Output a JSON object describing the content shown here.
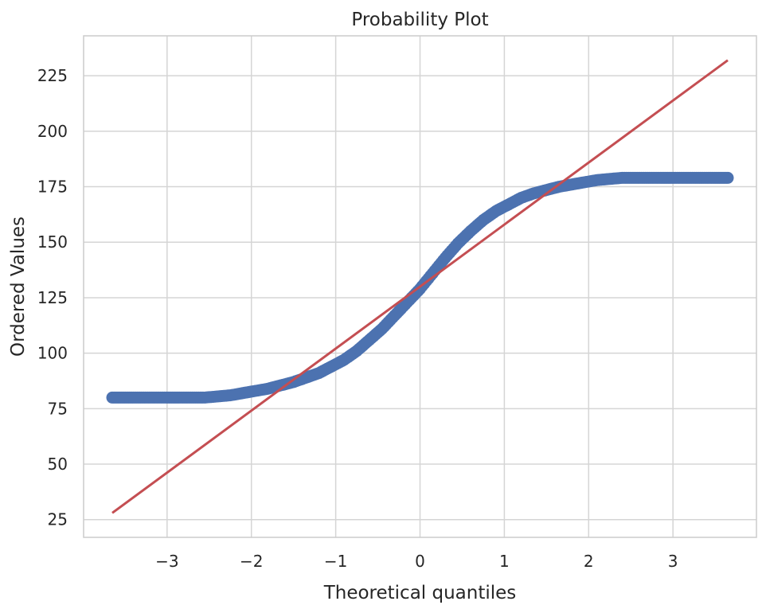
{
  "chart_data": {
    "type": "scatter",
    "title": "Probability Plot",
    "xlabel": "Theoretical quantiles",
    "ylabel": "Ordered Values",
    "xlim": [
      -3.99,
      3.99
    ],
    "ylim": [
      17,
      243
    ],
    "xticks": [
      -3,
      -2,
      -1,
      0,
      1,
      2,
      3
    ],
    "xtick_labels": [
      "−3",
      "−2",
      "−1",
      "0",
      "1",
      "2",
      "3"
    ],
    "yticks": [
      25,
      50,
      75,
      100,
      125,
      150,
      175,
      200,
      225
    ],
    "ytick_labels": [
      "25",
      "50",
      "75",
      "100",
      "125",
      "150",
      "175",
      "200",
      "225"
    ],
    "grid": true,
    "series": [
      {
        "kind": "points",
        "color": "#4c72b0",
        "x": [
          -3.65,
          -3.4,
          -3.28,
          -3.18,
          -3.08,
          -2.98,
          -2.85,
          -2.7,
          -2.55,
          -2.4,
          -2.25,
          -2.1,
          -1.95,
          -1.8,
          -1.65,
          -1.5,
          -1.35,
          -1.2,
          -1.05,
          -0.9,
          -0.75,
          -0.6,
          -0.45,
          -0.3,
          -0.15,
          0.0,
          0.15,
          0.3,
          0.45,
          0.6,
          0.75,
          0.9,
          1.05,
          1.2,
          1.35,
          1.5,
          1.65,
          1.8,
          1.95,
          2.1,
          2.25,
          2.4,
          2.55,
          2.7,
          2.85,
          2.98,
          3.08,
          3.18,
          3.28,
          3.4,
          3.65
        ],
        "y": [
          80,
          80,
          80,
          80,
          80,
          80,
          80,
          80,
          80,
          80.5,
          81,
          82,
          83,
          84,
          85.5,
          87,
          89,
          91,
          94,
          97,
          101,
          106,
          111,
          117,
          123,
          129,
          136,
          143,
          149.5,
          155,
          160,
          164,
          167,
          170,
          172,
          173.5,
          175,
          176,
          177,
          178,
          178.5,
          179,
          179,
          179,
          179,
          179,
          179,
          179,
          179,
          179,
          179
        ]
      },
      {
        "kind": "fit-line",
        "color": "#c44e52",
        "x": [
          -3.65,
          3.65
        ],
        "y": [
          28,
          232
        ]
      }
    ]
  }
}
